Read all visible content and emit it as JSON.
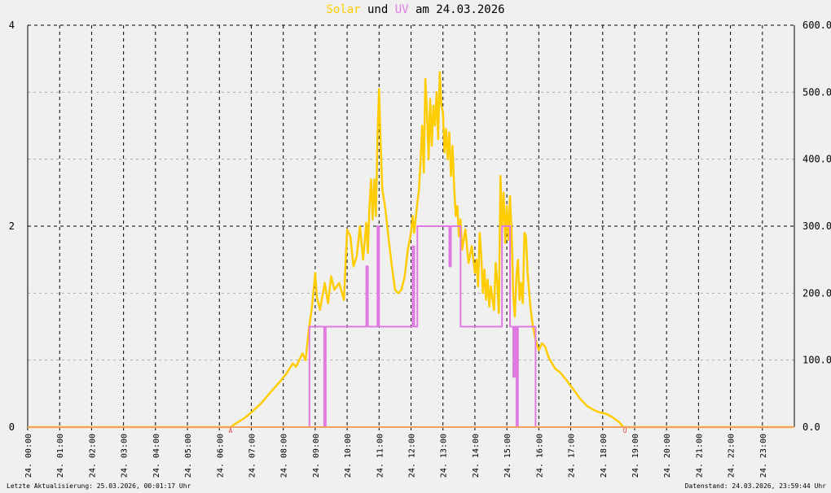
{
  "title": {
    "s1": "Solar",
    "mid1": " und ",
    "s2": "UV",
    "mid2": " am 24.03.2026"
  },
  "footer": {
    "left": "Letzte Aktualisierung: 25.03.2026, 00:01:17 Uhr",
    "right": "Datenstand: 24.03.2026, 23:59:44 Uhr"
  },
  "chart_data": {
    "type": "line",
    "x_unit": "hour",
    "xlim": [
      0,
      24
    ],
    "x_ticks": [
      "24. 00:00",
      "24. 01:00",
      "24. 02:00",
      "24. 03:00",
      "24. 04:00",
      "24. 05:00",
      "24. 06:00",
      "24. 07:00",
      "24. 08:00",
      "24. 09:00",
      "24. 10:00",
      "24. 11:00",
      "24. 12:00",
      "24. 13:00",
      "24. 14:00",
      "24. 15:00",
      "24. 16:00",
      "24. 17:00",
      "24. 18:00",
      "24. 19:00",
      "24. 20:00",
      "24. 21:00",
      "24. 22:00",
      "24. 23:00"
    ],
    "y_left": {
      "lim": [
        0,
        4
      ],
      "ticks": [
        "0",
        "2",
        "4"
      ]
    },
    "y_right": {
      "lim": [
        0,
        600
      ],
      "ticks": [
        "0.0",
        "100.0",
        "200.0",
        "300.0",
        "400.0",
        "500.0",
        "600.0"
      ]
    },
    "grid": true,
    "markers": {
      "sunrise": {
        "x": 6.35,
        "label": "A"
      },
      "sunset": {
        "x": 18.7,
        "label": "U"
      }
    },
    "series": [
      {
        "name": "Solar",
        "axis": "right",
        "color": "#ffcc00",
        "points": [
          [
            0,
            0
          ],
          [
            6.35,
            0
          ],
          [
            6.5,
            5
          ],
          [
            6.8,
            14
          ],
          [
            7.0,
            22
          ],
          [
            7.3,
            35
          ],
          [
            7.6,
            52
          ],
          [
            7.9,
            68
          ],
          [
            8.1,
            80
          ],
          [
            8.3,
            95
          ],
          [
            8.4,
            90
          ],
          [
            8.5,
            100
          ],
          [
            8.6,
            110
          ],
          [
            8.7,
            100
          ],
          [
            8.8,
            145
          ],
          [
            8.9,
            180
          ],
          [
            9.0,
            230
          ],
          [
            9.05,
            195
          ],
          [
            9.15,
            175
          ],
          [
            9.3,
            215
          ],
          [
            9.4,
            185
          ],
          [
            9.5,
            225
          ],
          [
            9.6,
            205
          ],
          [
            9.75,
            215
          ],
          [
            9.9,
            190
          ],
          [
            10.0,
            295
          ],
          [
            10.1,
            285
          ],
          [
            10.2,
            240
          ],
          [
            10.3,
            255
          ],
          [
            10.4,
            300
          ],
          [
            10.5,
            250
          ],
          [
            10.6,
            305
          ],
          [
            10.65,
            260
          ],
          [
            10.7,
            330
          ],
          [
            10.75,
            370
          ],
          [
            10.8,
            310
          ],
          [
            10.85,
            370
          ],
          [
            10.9,
            315
          ],
          [
            10.95,
            430
          ],
          [
            11.0,
            505
          ],
          [
            11.05,
            420
          ],
          [
            11.1,
            355
          ],
          [
            11.2,
            325
          ],
          [
            11.3,
            280
          ],
          [
            11.4,
            240
          ],
          [
            11.5,
            205
          ],
          [
            11.6,
            200
          ],
          [
            11.7,
            205
          ],
          [
            11.8,
            225
          ],
          [
            11.9,
            265
          ],
          [
            12.0,
            290
          ],
          [
            12.05,
            315
          ],
          [
            12.1,
            290
          ],
          [
            12.2,
            335
          ],
          [
            12.25,
            355
          ],
          [
            12.3,
            400
          ],
          [
            12.35,
            450
          ],
          [
            12.4,
            380
          ],
          [
            12.45,
            520
          ],
          [
            12.5,
            470
          ],
          [
            12.55,
            400
          ],
          [
            12.6,
            490
          ],
          [
            12.65,
            420
          ],
          [
            12.7,
            480
          ],
          [
            12.75,
            450
          ],
          [
            12.8,
            500
          ],
          [
            12.85,
            430
          ],
          [
            12.9,
            530
          ],
          [
            12.95,
            480
          ],
          [
            13.0,
            470
          ],
          [
            13.05,
            410
          ],
          [
            13.1,
            445
          ],
          [
            13.15,
            400
          ],
          [
            13.2,
            440
          ],
          [
            13.25,
            375
          ],
          [
            13.3,
            420
          ],
          [
            13.35,
            360
          ],
          [
            13.4,
            315
          ],
          [
            13.45,
            330
          ],
          [
            13.5,
            285
          ],
          [
            13.55,
            310
          ],
          [
            13.6,
            265
          ],
          [
            13.7,
            295
          ],
          [
            13.8,
            245
          ],
          [
            13.9,
            270
          ],
          [
            14.0,
            230
          ],
          [
            14.05,
            250
          ],
          [
            14.1,
            210
          ],
          [
            14.15,
            290
          ],
          [
            14.2,
            255
          ],
          [
            14.25,
            200
          ],
          [
            14.3,
            235
          ],
          [
            14.35,
            190
          ],
          [
            14.4,
            220
          ],
          [
            14.45,
            180
          ],
          [
            14.5,
            210
          ],
          [
            14.6,
            175
          ],
          [
            14.65,
            245
          ],
          [
            14.7,
            215
          ],
          [
            14.75,
            170
          ],
          [
            14.8,
            375
          ],
          [
            14.85,
            300
          ],
          [
            14.9,
            350
          ],
          [
            14.95,
            275
          ],
          [
            15.0,
            330
          ],
          [
            15.05,
            280
          ],
          [
            15.1,
            345
          ],
          [
            15.15,
            290
          ],
          [
            15.2,
            195
          ],
          [
            15.25,
            165
          ],
          [
            15.3,
            225
          ],
          [
            15.35,
            250
          ],
          [
            15.4,
            190
          ],
          [
            15.45,
            215
          ],
          [
            15.5,
            185
          ],
          [
            15.55,
            290
          ],
          [
            15.6,
            285
          ],
          [
            15.65,
            230
          ],
          [
            15.7,
            200
          ],
          [
            15.75,
            175
          ],
          [
            15.8,
            155
          ],
          [
            15.9,
            130
          ],
          [
            16.0,
            115
          ],
          [
            16.1,
            125
          ],
          [
            16.2,
            120
          ],
          [
            16.3,
            105
          ],
          [
            16.5,
            88
          ],
          [
            16.7,
            80
          ],
          [
            16.9,
            68
          ],
          [
            17.1,
            55
          ],
          [
            17.3,
            42
          ],
          [
            17.5,
            32
          ],
          [
            17.7,
            26
          ],
          [
            17.9,
            22
          ],
          [
            18.1,
            20
          ],
          [
            18.3,
            15
          ],
          [
            18.5,
            8
          ],
          [
            18.65,
            0
          ],
          [
            24,
            0
          ]
        ]
      },
      {
        "name": "UV",
        "axis": "left",
        "color": "#e07ae0",
        "points": [
          [
            0,
            0
          ],
          [
            8.82,
            0
          ],
          [
            8.82,
            1
          ],
          [
            9.28,
            1
          ],
          [
            9.28,
            0
          ],
          [
            9.33,
            0
          ],
          [
            9.33,
            1
          ],
          [
            10.6,
            1
          ],
          [
            10.6,
            1.6
          ],
          [
            10.65,
            1.6
          ],
          [
            10.65,
            1
          ],
          [
            10.95,
            1
          ],
          [
            10.95,
            2
          ],
          [
            11.0,
            2
          ],
          [
            11.0,
            1
          ],
          [
            12.05,
            1
          ],
          [
            12.05,
            1.8
          ],
          [
            12.1,
            1.8
          ],
          [
            12.1,
            1
          ],
          [
            12.2,
            1
          ],
          [
            12.2,
            2
          ],
          [
            13.2,
            2
          ],
          [
            13.2,
            1.6
          ],
          [
            13.25,
            1.6
          ],
          [
            13.25,
            2
          ],
          [
            13.55,
            2
          ],
          [
            13.55,
            1
          ],
          [
            14.85,
            1
          ],
          [
            14.85,
            2
          ],
          [
            15.1,
            2
          ],
          [
            15.1,
            1
          ],
          [
            15.2,
            1
          ],
          [
            15.2,
            0.5
          ],
          [
            15.25,
            0.5
          ],
          [
            15.25,
            1
          ],
          [
            15.3,
            1
          ],
          [
            15.3,
            0
          ],
          [
            15.35,
            0
          ],
          [
            15.35,
            1
          ],
          [
            15.9,
            1
          ],
          [
            15.9,
            0
          ],
          [
            24,
            0
          ]
        ]
      }
    ]
  }
}
